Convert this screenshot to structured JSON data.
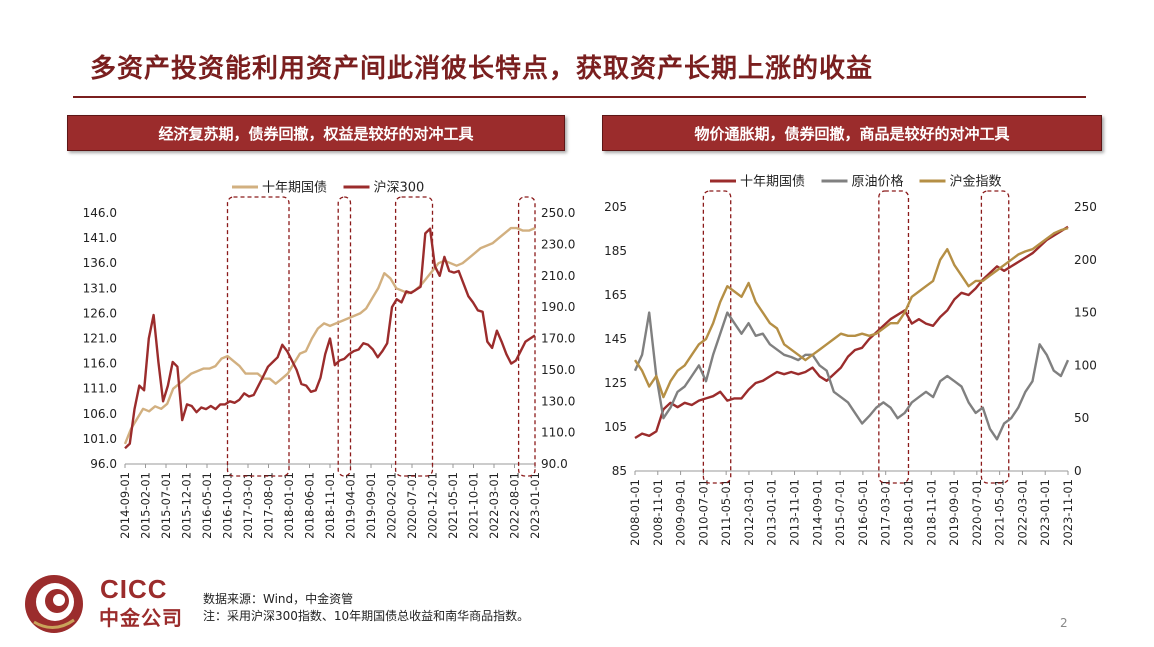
{
  "page": {
    "title": "多资产投资能利用资产间此消彼长特点，获取资产长期上涨的收益",
    "left_header": "经济复苏期，债券回撤，权益是较好的对冲工具",
    "right_header": "物价通胀期，债券回撤，商品是较好的对冲工具",
    "logo_top": "CICC",
    "logo_bottom": "中金公司",
    "source_line1": "数据来源：Wind，中金资管",
    "source_line2": "注：采用沪深300指数、10年期国债总收益和南华商品指数。",
    "page_number": "2"
  },
  "colors": {
    "primary_red": "#9b2c2c",
    "tan": "#d2b080",
    "gold": "#b58f45",
    "gray": "#808080",
    "dashed_box": "#8b1a1a"
  },
  "chart_data": [
    {
      "type": "line",
      "x_ticks": [
        "2014-09-01",
        "2015-02-01",
        "2015-07-01",
        "2015-12-01",
        "2016-05-01",
        "2016-10-01",
        "2017-03-01",
        "2017-08-01",
        "2018-01-01",
        "2018-06-01",
        "2018-11-01",
        "2019-04-01",
        "2019-09-01",
        "2020-02-01",
        "2020-07-01",
        "2020-12-01",
        "2021-05-01",
        "2021-10-01",
        "2022-03-01",
        "2022-08-01",
        "2023-01-01"
      ],
      "y_left_ticks": [
        "146.0",
        "141.0",
        "136.0",
        "131.0",
        "126.0",
        "121.0",
        "116.0",
        "111.0",
        "106.0",
        "101.0",
        "96.0"
      ],
      "y_right_ticks": [
        "250.0",
        "230.0",
        "210.0",
        "190.0",
        "170.0",
        "150.0",
        "130.0",
        "110.0",
        "90.0"
      ],
      "ylim_left": [
        96,
        146
      ],
      "ylim_right": [
        90,
        250
      ],
      "legend": [
        "十年期国债",
        "沪深300"
      ],
      "series": [
        {
          "name": "十年期国债",
          "axis": "left",
          "color": "#d2b080",
          "values": [
            100,
            103,
            105,
            107,
            106.5,
            107.5,
            107,
            108,
            111,
            112,
            113,
            114,
            114.5,
            115,
            115,
            115.5,
            117,
            117.5,
            116.5,
            115.5,
            114,
            114,
            114,
            113,
            113,
            112,
            113,
            114,
            116,
            118,
            118.5,
            121,
            123,
            124,
            123.5,
            124,
            124.5,
            125,
            125.5,
            126,
            127,
            129,
            131,
            134,
            133,
            131,
            130.5,
            130,
            130.5,
            131.5,
            133,
            134.5,
            136,
            136.5,
            136,
            135.5,
            136,
            137,
            138,
            139,
            139.5,
            140,
            141,
            142,
            143,
            143,
            142.5,
            142.5,
            143
          ]
        },
        {
          "name": "沪深300",
          "axis": "right",
          "color": "#9b2c2c",
          "values": [
            100,
            103,
            125,
            140,
            137,
            170,
            185,
            155,
            130,
            140,
            155,
            152,
            118,
            128,
            127,
            123,
            126,
            125,
            127,
            125,
            128,
            128,
            130,
            129,
            131,
            135,
            133,
            134,
            140,
            146,
            152,
            155,
            158,
            166,
            162,
            156,
            150,
            141,
            140,
            136,
            137,
            145,
            160,
            170,
            153,
            156,
            157,
            160,
            162,
            163,
            167,
            166,
            163,
            158,
            162,
            167,
            190,
            195,
            193,
            200,
            199,
            201,
            203,
            237,
            240,
            216,
            210,
            222,
            213,
            212,
            213,
            205,
            197,
            193,
            188,
            187,
            168,
            164,
            175,
            168,
            160,
            154,
            156,
            162,
            168,
            170,
            172
          ]
        }
      ],
      "highlight_periods": [
        [
          "2016-10",
          "2018-01"
        ],
        [
          "2019-01",
          "2019-04"
        ],
        [
          "2020-03",
          "2020-12"
        ],
        [
          "2022-09",
          "2023-01"
        ]
      ]
    },
    {
      "type": "line",
      "x_ticks": [
        "2008-01-01",
        "2008-11-01",
        "2009-09-01",
        "2010-07-01",
        "2011-05-01",
        "2012-03-01",
        "2013-01-01",
        "2013-11-01",
        "2014-09-01",
        "2015-07-01",
        "2016-05-01",
        "2017-03-01",
        "2018-01-01",
        "2018-11-01",
        "2019-09-01",
        "2020-07-01",
        "2021-05-01",
        "2022-03-01",
        "2023-01-01",
        "2023-11-01"
      ],
      "y_left_ticks": [
        "205",
        "185",
        "165",
        "145",
        "125",
        "105",
        "85"
      ],
      "y_right_ticks": [
        "250",
        "200",
        "150",
        "100",
        "50",
        "0"
      ],
      "ylim_left": [
        85,
        205
      ],
      "ylim_right": [
        0,
        250
      ],
      "legend": [
        "十年期国债",
        "原油价格",
        "沪金指数"
      ],
      "series": [
        {
          "name": "十年期国债",
          "axis": "left",
          "color": "#9b2c2c",
          "values": [
            100,
            102,
            101,
            103,
            113,
            116,
            114,
            116,
            115,
            117,
            118,
            119,
            121,
            117,
            118,
            118,
            122,
            125,
            126,
            128,
            130,
            129,
            130,
            129,
            130,
            132,
            128,
            126,
            129,
            132,
            137,
            140,
            141,
            145,
            148,
            151,
            154,
            156,
            158,
            152,
            154,
            152,
            151,
            155,
            158,
            163,
            166,
            165,
            168,
            172,
            175,
            178,
            176,
            178,
            180,
            182,
            184,
            187,
            190,
            192,
            194,
            196
          ]
        },
        {
          "name": "原油价格",
          "axis": "right",
          "color": "#808080",
          "values": [
            95,
            110,
            150,
            90,
            50,
            60,
            75,
            80,
            90,
            100,
            85,
            110,
            130,
            150,
            140,
            130,
            140,
            128,
            130,
            120,
            115,
            110,
            108,
            105,
            110,
            110,
            100,
            95,
            75,
            70,
            65,
            55,
            45,
            52,
            60,
            65,
            60,
            50,
            55,
            65,
            70,
            75,
            70,
            85,
            90,
            85,
            80,
            65,
            55,
            60,
            40,
            30,
            45,
            50,
            60,
            75,
            85,
            120,
            110,
            95,
            90,
            105
          ]
        },
        {
          "name": "沪金指数",
          "axis": "right",
          "color": "#b58f45",
          "values": [
            105,
            95,
            80,
            90,
            70,
            85,
            95,
            100,
            110,
            120,
            125,
            140,
            160,
            175,
            170,
            165,
            178,
            160,
            150,
            140,
            135,
            120,
            115,
            110,
            105,
            110,
            115,
            120,
            125,
            130,
            128,
            128,
            130,
            128,
            130,
            135,
            140,
            140,
            150,
            165,
            170,
            175,
            180,
            200,
            210,
            195,
            185,
            175,
            180,
            180,
            185,
            190,
            195,
            200,
            205,
            208,
            210,
            215,
            220,
            225,
            228,
            230
          ]
        }
      ],
      "highlight_periods": [
        [
          "2010-07",
          "2011-07"
        ],
        [
          "2016-12",
          "2018-01"
        ],
        [
          "2020-09",
          "2021-09"
        ]
      ]
    }
  ]
}
